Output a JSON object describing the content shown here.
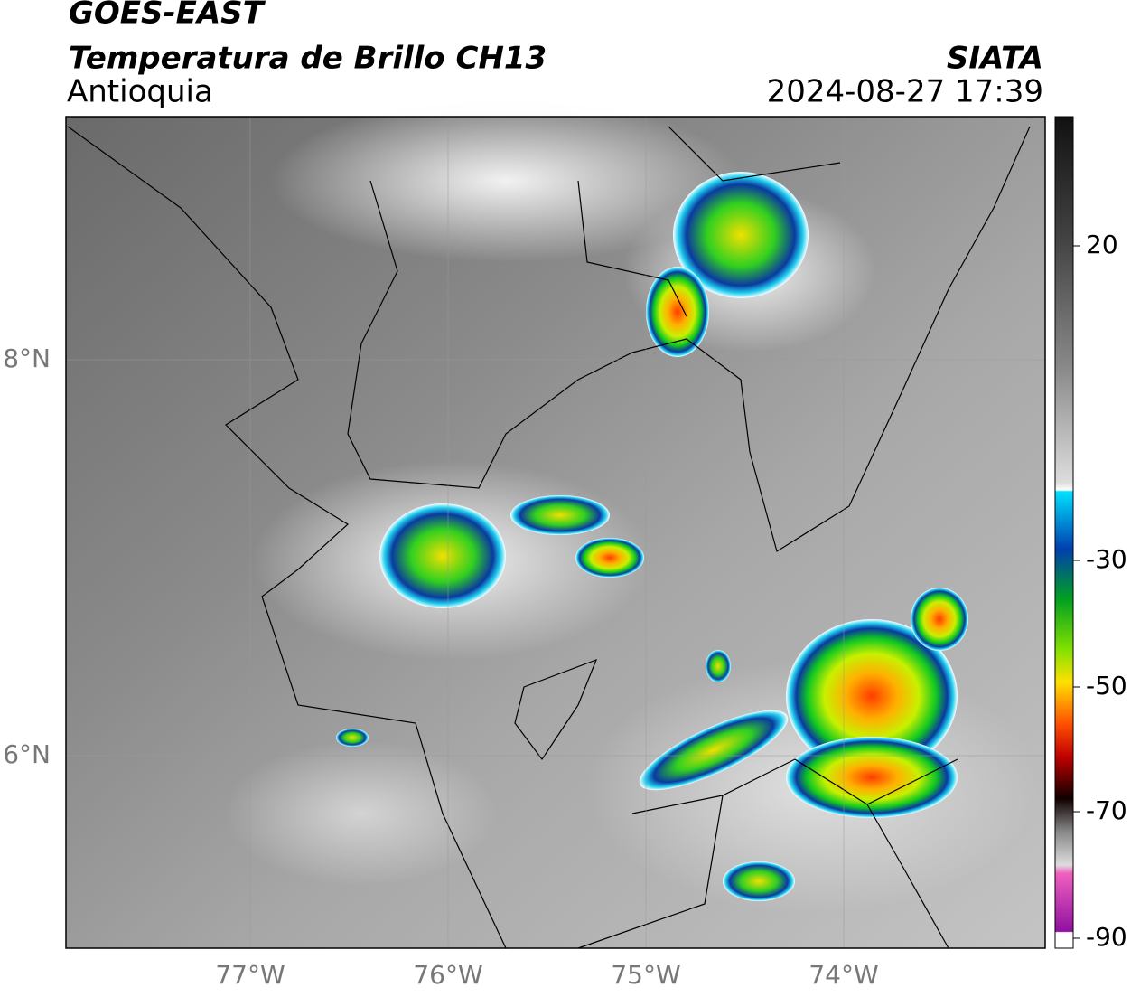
{
  "header": {
    "title": "GOES-EAST",
    "product": "Temperatura de Brillo CH13",
    "region": "Antioquia",
    "source": "SIATA",
    "datetime": "2024-08-27 17:39"
  },
  "map": {
    "lat_labels": [
      "8°N",
      "6°N"
    ],
    "lon_labels": [
      "77°W",
      "76°W",
      "75°W",
      "74°W"
    ]
  },
  "colorbar": {
    "ticks": [
      20,
      -30,
      -50,
      -70,
      -90
    ]
  }
}
